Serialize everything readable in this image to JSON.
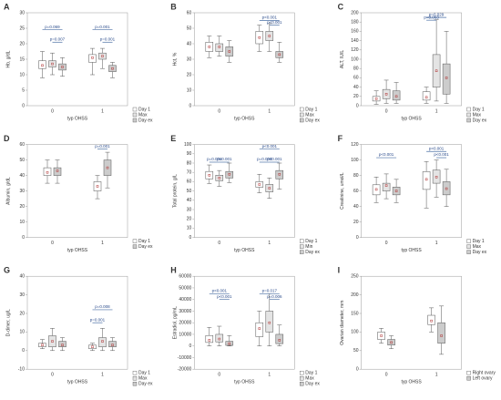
{
  "chart_data": [
    {
      "type": "box",
      "panel": "A",
      "y_label": "Hb, g/dL",
      "x_label": "typ OHSS",
      "categories": [
        "0",
        "1"
      ],
      "ylim": [
        0,
        30
      ],
      "yticks": [
        0,
        5,
        10,
        15,
        20,
        25,
        30
      ],
      "series": [
        {
          "name": "Day 1",
          "color": "#ffffff",
          "values": [
            [
              9,
              12,
              13,
              14.5,
              17.5
            ],
            [
              10,
              14,
              15.5,
              16.5,
              18.5
            ]
          ]
        },
        {
          "name": "Max",
          "color": "#e4e4e4",
          "values": [
            [
              10,
              12.5,
              13.5,
              14.5,
              17
            ],
            [
              12,
              15,
              16,
              17,
              18.5
            ]
          ]
        },
        {
          "name": "Day ex",
          "color": "#cccccc",
          "values": [
            [
              9.5,
              11.5,
              12.5,
              13.5,
              15.5
            ],
            [
              9,
              11,
              12,
              13,
              14
            ]
          ]
        }
      ],
      "annotations": [
        {
          "text": "p=0.069",
          "y": 24.5
        },
        {
          "text": "p=0.007",
          "y": 20.5
        },
        {
          "text": "p=0.001",
          "y": 24.5
        },
        {
          "text": "p=0.001",
          "y": 20.5
        }
      ]
    },
    {
      "type": "box",
      "panel": "B",
      "y_label": "Hct, %",
      "x_label": "typ OHSS",
      "categories": [
        "0",
        "1"
      ],
      "ylim": [
        0,
        60
      ],
      "yticks": [
        0,
        10,
        20,
        30,
        40,
        50,
        60
      ],
      "series": [
        {
          "name": "Day 1",
          "color": "#ffffff",
          "values": [
            [
              31,
              35,
              38,
              41,
              45
            ],
            [
              35,
              40,
              44,
              48,
              52
            ]
          ]
        },
        {
          "name": "Max",
          "color": "#e4e4e4",
          "values": [
            [
              32,
              35,
              38,
              40,
              45
            ],
            [
              35,
              42,
              45,
              48,
              53
            ]
          ]
        },
        {
          "name": "Day ex",
          "color": "#cccccc",
          "values": [
            [
              28,
              32,
              35,
              38,
              42
            ],
            [
              28,
              31,
              33,
              35,
              41
            ]
          ]
        }
      ],
      "annotations": [
        {
          "text": "p<0.001",
          "y": 55
        },
        {
          "text": "p<0.001",
          "y": 52
        }
      ]
    },
    {
      "type": "box",
      "panel": "C",
      "y_label": "ALT, IU/L",
      "x_label": "typ OHSS",
      "categories": [
        "0",
        "1"
      ],
      "ylim": [
        0,
        200
      ],
      "yticks": [
        0,
        20,
        40,
        60,
        80,
        100,
        120,
        140,
        160,
        180,
        200
      ],
      "series": [
        {
          "name": "Day 1",
          "color": "#ffffff",
          "values": [
            [
              3,
              10,
              15,
              20,
              32
            ],
            [
              5,
              12,
              18,
              30,
              40
            ]
          ]
        },
        {
          "name": "Max",
          "color": "#e4e4e4",
          "values": [
            [
              5,
              15,
              25,
              35,
              55
            ],
            [
              10,
              40,
              75,
              110,
              185
            ]
          ]
        },
        {
          "name": "Day ex",
          "color": "#cccccc",
          "values": [
            [
              5,
              12,
              20,
              32,
              50
            ],
            [
              5,
              25,
              60,
              90,
              160
            ]
          ]
        }
      ],
      "annotations": [
        {
          "text": "p=0.029",
          "y": 190
        },
        {
          "text": "p=0.063",
          "y": 184
        }
      ]
    },
    {
      "type": "box",
      "panel": "D",
      "y_label": "Albumin, g/dL",
      "x_label": "typ OHSS",
      "categories": [
        "0",
        "1"
      ],
      "ylim": [
        0,
        60
      ],
      "yticks": [
        0,
        10,
        20,
        30,
        40,
        50,
        60
      ],
      "series": [
        {
          "name": "Day 1",
          "color": "#ffffff",
          "values": [
            [
              35,
              40,
              42,
              45,
              50
            ],
            [
              25,
              30,
              33,
              36,
              40
            ]
          ]
        },
        {
          "name": "Day ex",
          "color": "#cccccc",
          "values": [
            [
              35,
              40,
              43,
              45,
              50
            ],
            [
              32,
              40,
              45,
              50,
              55
            ]
          ]
        }
      ],
      "annotations": [
        {
          "text": "p=0.001",
          "y": 57
        }
      ]
    },
    {
      "type": "box",
      "panel": "E",
      "y_label": "Total protein, g/L",
      "x_label": "typ OHSS",
      "categories": [
        "0",
        "1"
      ],
      "ylim": [
        0,
        100
      ],
      "yticks": [
        0,
        10,
        20,
        30,
        40,
        50,
        60,
        70,
        80,
        90,
        100
      ],
      "series": [
        {
          "name": "Day 1",
          "color": "#ffffff",
          "values": [
            [
              58,
              63,
              67,
              71,
              78
            ],
            [
              48,
              54,
              57,
              60,
              68
            ]
          ]
        },
        {
          "name": "Min",
          "color": "#e4e4e4",
          "values": [
            [
              55,
              61,
              64,
              67,
              72
            ],
            [
              42,
              49,
              53,
              57,
              64
            ]
          ]
        },
        {
          "name": "Day ex",
          "color": "#cccccc",
          "values": [
            [
              59,
              64,
              68,
              71,
              80
            ],
            [
              52,
              63,
              68,
              72,
              80
            ]
          ]
        }
      ],
      "annotations": [
        {
          "text": "p=0.008",
          "y": 81
        },
        {
          "text": "p=0.001",
          "y": 81
        },
        {
          "text": "p<0.001",
          "y": 95
        },
        {
          "text": "p=0.003",
          "y": 81
        },
        {
          "text": "p<0.001",
          "y": 81
        }
      ]
    },
    {
      "type": "box",
      "panel": "F",
      "y_label": "Creatinine, umol/L",
      "x_label": "typ OHSS",
      "categories": [
        "0",
        "1"
      ],
      "ylim": [
        0,
        120
      ],
      "yticks": [
        0,
        20,
        40,
        60,
        80,
        100,
        120
      ],
      "series": [
        {
          "name": "Day 1",
          "color": "#ffffff",
          "values": [
            [
              45,
              55,
              62,
              68,
              78
            ],
            [
              38,
              62,
              75,
              85,
              98
            ]
          ]
        },
        {
          "name": "Max",
          "color": "#e4e4e4",
          "values": [
            [
              50,
              60,
              67,
              70,
              82
            ],
            [
              52,
              70,
              78,
              87,
              100
            ]
          ]
        },
        {
          "name": "Day ex",
          "color": "#cccccc",
          "values": [
            [
              45,
              55,
              60,
              65,
              75
            ],
            [
              40,
              55,
              63,
              72,
              88
            ]
          ]
        }
      ],
      "annotations": [
        {
          "text": "p<0.001",
          "y": 103
        },
        {
          "text": "p<0.001",
          "y": 111
        },
        {
          "text": "p<0.001",
          "y": 103
        }
      ]
    },
    {
      "type": "box",
      "panel": "G",
      "y_label": "D-dimer, ug/L",
      "x_label": "typ OHSS",
      "categories": [
        "0",
        "1"
      ],
      "ylim": [
        -10,
        40
      ],
      "yticks": [
        -10,
        0,
        10,
        20,
        30,
        40
      ],
      "series": [
        {
          "name": "Day 1",
          "color": "#ffffff",
          "values": [
            [
              1,
              2,
              3,
              4,
              6
            ],
            [
              0,
              1,
              2,
              3,
              4
            ]
          ]
        },
        {
          "name": "Max",
          "color": "#e4e4e4",
          "values": [
            [
              0,
              2,
              5,
              8,
              12
            ],
            [
              0,
              2,
              5,
              7,
              12
            ]
          ]
        },
        {
          "name": "Day ex",
          "color": "#cccccc",
          "values": [
            [
              0,
              2,
              3,
              5,
              7
            ],
            [
              0,
              2,
              3,
              5,
              7
            ]
          ]
        }
      ],
      "annotations": [
        {
          "text": "p=0.008",
          "y": 22
        },
        {
          "text": "p=0.001",
          "y": 15
        }
      ]
    },
    {
      "type": "box",
      "panel": "H",
      "y_label": "Estradiol, pg/mL",
      "x_label": "typ OHSS",
      "categories": [
        "0",
        "1"
      ],
      "ylim": [
        -20000,
        60000
      ],
      "yticks": [
        -20000,
        -10000,
        0,
        10000,
        20000,
        30000,
        40000,
        50000,
        60000
      ],
      "series": [
        {
          "name": "Day 1",
          "color": "#ffffff",
          "values": [
            [
              0,
              3000,
              5000,
              9000,
              16000
            ],
            [
              0,
              8000,
              15000,
              20000,
              30000
            ]
          ]
        },
        {
          "name": "Max",
          "color": "#e4e4e4",
          "values": [
            [
              0,
              3500,
              6000,
              10000,
              17000
            ],
            [
              0,
              12000,
              20000,
              30000,
              45000
            ]
          ]
        },
        {
          "name": "Day ex",
          "color": "#cccccc",
          "values": [
            [
              0,
              500,
              2000,
              4000,
              9000
            ],
            [
              0,
              2000,
              5000,
              10000,
              18000
            ]
          ]
        }
      ],
      "annotations": [
        {
          "text": "p<0.001",
          "y": 45000
        },
        {
          "text": "p<0.001",
          "y": 40000
        },
        {
          "text": "p=0.017",
          "y": 45000
        },
        {
          "text": "p=0.006",
          "y": 40000
        }
      ]
    },
    {
      "type": "box",
      "panel": "I",
      "y_label": "Ovarian diameter, mm",
      "x_label": "typ OHSS",
      "categories": [
        "0",
        "1"
      ],
      "ylim": [
        0,
        250
      ],
      "yticks": [
        0,
        50,
        100,
        150,
        200,
        250
      ],
      "series": [
        {
          "name": "Right ovary",
          "color": "#ffffff",
          "values": [
            [
              70,
              80,
              90,
              100,
              110
            ],
            [
              100,
              120,
              130,
              145,
              165
            ]
          ]
        },
        {
          "name": "Left ovary",
          "color": "#cccccc",
          "values": [
            [
              55,
              65,
              72,
              80,
              90
            ],
            [
              40,
              70,
              90,
              125,
              170
            ]
          ]
        }
      ],
      "annotations": []
    }
  ]
}
